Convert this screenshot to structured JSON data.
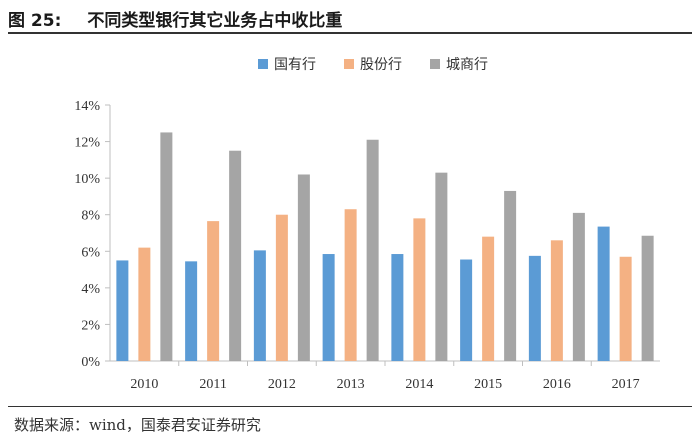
{
  "figure": {
    "label": "图 25:",
    "title": "不同类型银行其它业务占中收比重"
  },
  "source": "数据来源：wind，国泰君安证券研究",
  "colors": {
    "series": [
      "#5b9bd5",
      "#f4b183",
      "#a5a5a5"
    ],
    "axis": "#bfbfbf"
  },
  "chart_data": {
    "type": "bar",
    "title": "不同类型银行其它业务占中收比重",
    "xlabel": "",
    "ylabel": "",
    "categories": [
      "2010",
      "2011",
      "2012",
      "2013",
      "2014",
      "2015",
      "2016",
      "2017"
    ],
    "series": [
      {
        "name": "国有行",
        "values": [
          5.5,
          5.45,
          6.05,
          5.85,
          5.85,
          5.55,
          5.75,
          7.35
        ]
      },
      {
        "name": "股份行",
        "values": [
          6.2,
          7.65,
          8.0,
          8.3,
          7.8,
          6.8,
          6.6,
          5.7
        ]
      },
      {
        "name": "城商行",
        "values": [
          12.5,
          11.5,
          10.2,
          12.1,
          10.3,
          9.3,
          8.1,
          6.85
        ]
      }
    ],
    "ylim": [
      0,
      14
    ],
    "yticks": [
      "0%",
      "2%",
      "4%",
      "6%",
      "8%",
      "10%",
      "12%",
      "14%"
    ],
    "legend_position": "top-center",
    "grid": false
  }
}
